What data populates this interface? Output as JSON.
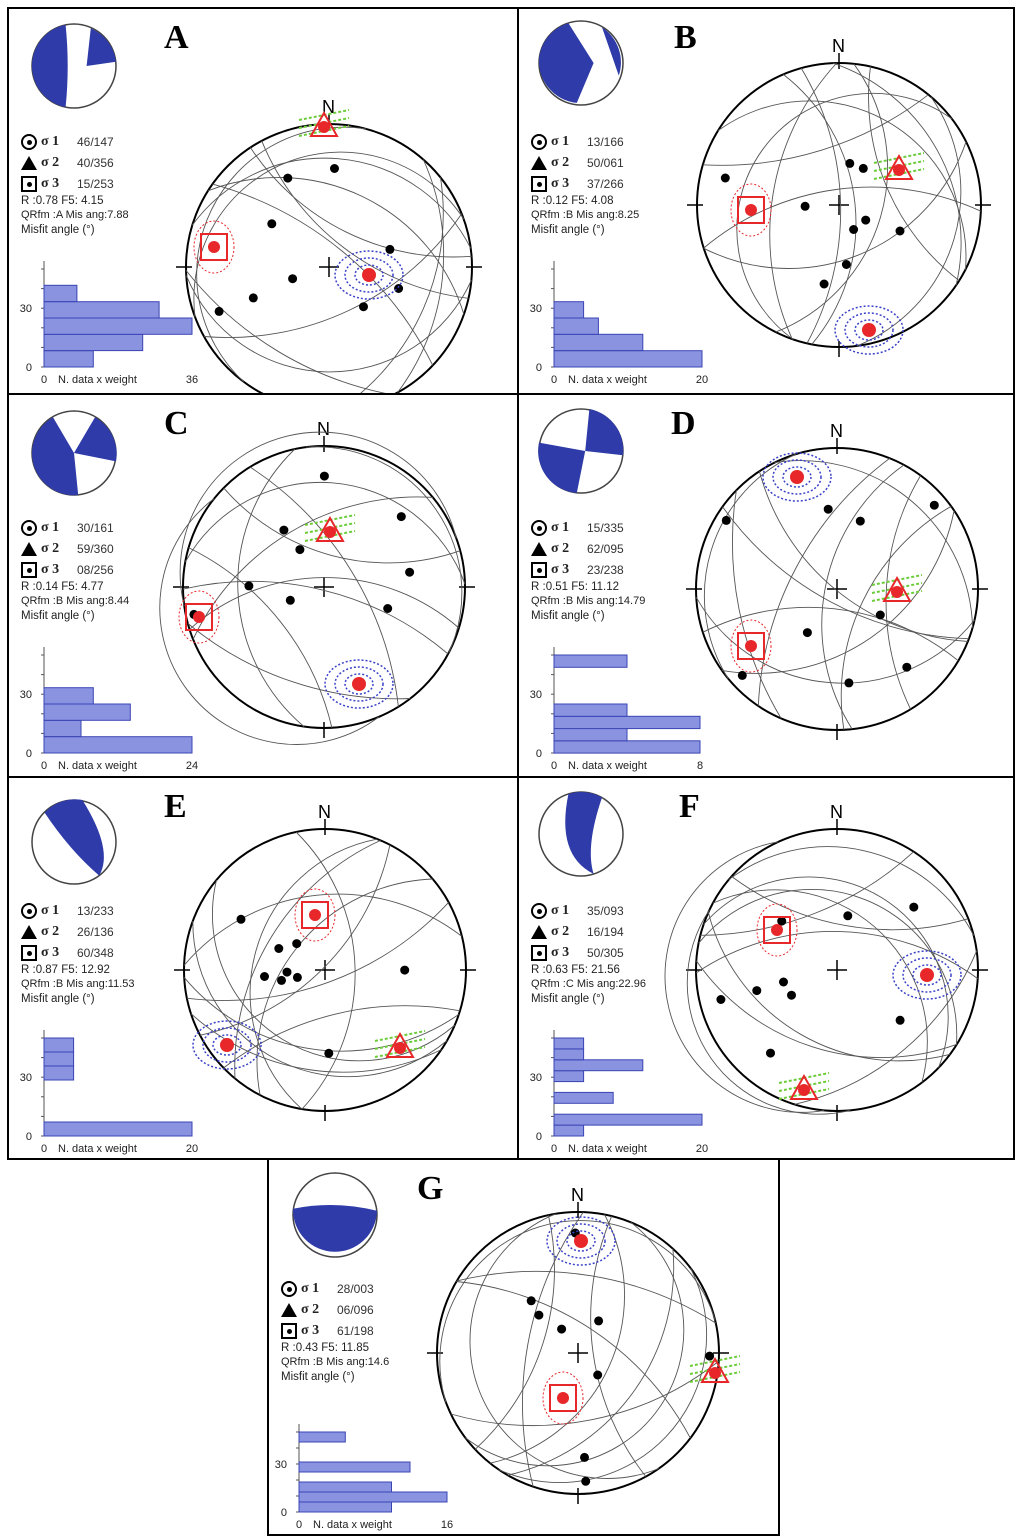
{
  "north_label": "N",
  "stats_labels": {
    "s1": "σ 1",
    "s2": "σ 2",
    "s3": "σ 3",
    "misfit": "Misfit angle (°)",
    "xaxis": "N. data x weight",
    "zero": "0",
    "y30": "30"
  },
  "colors": {
    "beachball": "#2e3ba8",
    "sigma": "#e8272a",
    "green": "#6ccc3a",
    "blue": "#3a42c8",
    "hist_fill": "#8a93e0",
    "hist_stroke": "#3a44b4"
  },
  "panels": [
    {
      "letter": "A",
      "s1": "46/147",
      "s2": "40/356",
      "s3": "15/253",
      "r_line": "R :0.78  F5: 4.15",
      "q_line": "QRfm :A  Mis ang:7.88",
      "hist_max_label": "36",
      "hist_max": 36,
      "hist_bars": [
        12,
        24,
        36,
        28,
        8,
        0
      ]
    },
    {
      "letter": "B",
      "s1": "13/166",
      "s2": "50/061",
      "s3": "37/266",
      "r_line": "R :0.12  F5: 4.08",
      "q_line": "QRfm :B  Mis ang:8.25",
      "hist_max_label": "20",
      "hist_max": 20,
      "hist_bars": [
        20,
        12,
        6,
        4,
        0,
        0
      ]
    },
    {
      "letter": "C",
      "s1": "30/161",
      "s2": "59/360",
      "s3": "08/256",
      "r_line": "R :0.14  F5: 4.77",
      "q_line": "QRfm :B  Mis ang:8.44",
      "hist_max_label": "24",
      "hist_max": 24,
      "hist_bars": [
        24,
        6,
        14,
        8,
        0,
        0
      ]
    },
    {
      "letter": "D",
      "s1": "15/335",
      "s2": "62/095",
      "s3": "23/238",
      "r_line": "R :0.51  F5: 11.12",
      "q_line": "QRfm :B  Mis ang:14.79",
      "hist_max_label": "8",
      "hist_max": 8,
      "hist_bars": [
        8,
        4,
        8,
        4,
        0,
        0,
        0,
        4
      ]
    },
    {
      "letter": "E",
      "s1": "13/233",
      "s2": "26/136",
      "s3": "60/348",
      "r_line": "R :0.87  F5: 12.92",
      "q_line": "QRfm :B  Mis ang:11.53",
      "hist_max_label": "20",
      "hist_max": 20,
      "hist_bars": [
        20,
        0,
        0,
        0,
        4,
        4,
        4
      ]
    },
    {
      "letter": "F",
      "s1": "35/093",
      "s2": "16/194",
      "s3": "50/305",
      "r_line": "R :0.63  F5: 21.56",
      "q_line": "QRfm :C  Mis ang:22.96",
      "hist_max_label": "20",
      "hist_max": 20,
      "hist_bars": [
        4,
        20,
        0,
        8,
        0,
        4,
        12,
        4,
        4
      ]
    },
    {
      "letter": "G",
      "s1": "28/003",
      "s2": "06/096",
      "s3": "61/198",
      "r_line": "R :0.43  F5: 11.85",
      "q_line": "QRfm :B  Mis ang:14.6",
      "hist_max_label": "16",
      "hist_max": 16,
      "hist_bars": [
        10,
        16,
        10,
        0,
        12,
        0,
        0,
        5
      ]
    }
  ]
}
